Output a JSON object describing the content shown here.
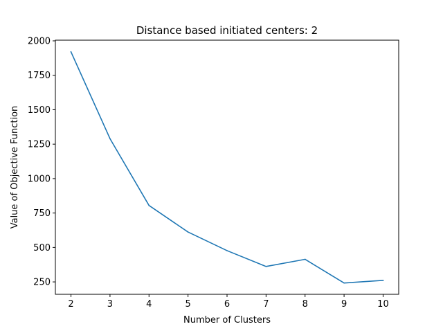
{
  "chart_data": {
    "type": "line",
    "title": "Distance based initiated centers: 2",
    "xlabel": "Number of Clusters",
    "ylabel": "Value of Objective Function",
    "x": [
      2,
      3,
      4,
      5,
      6,
      7,
      8,
      9,
      10
    ],
    "series": [
      {
        "values": [
          1920,
          1290,
          805,
          612,
          477,
          362,
          414,
          242,
          261
        ]
      }
    ],
    "xlim": [
      1.6,
      10.4
    ],
    "ylim": [
      160,
      2005
    ],
    "xticks": [
      "2",
      "3",
      "4",
      "5",
      "6",
      "7",
      "8",
      "9",
      "10"
    ],
    "yticks": [
      "250",
      "500",
      "750",
      "1000",
      "1250",
      "1500",
      "1750",
      "2000"
    ],
    "grid": false,
    "colors": {
      "line": "#1f77b4",
      "axes": "#000000",
      "background": "#ffffff"
    }
  }
}
